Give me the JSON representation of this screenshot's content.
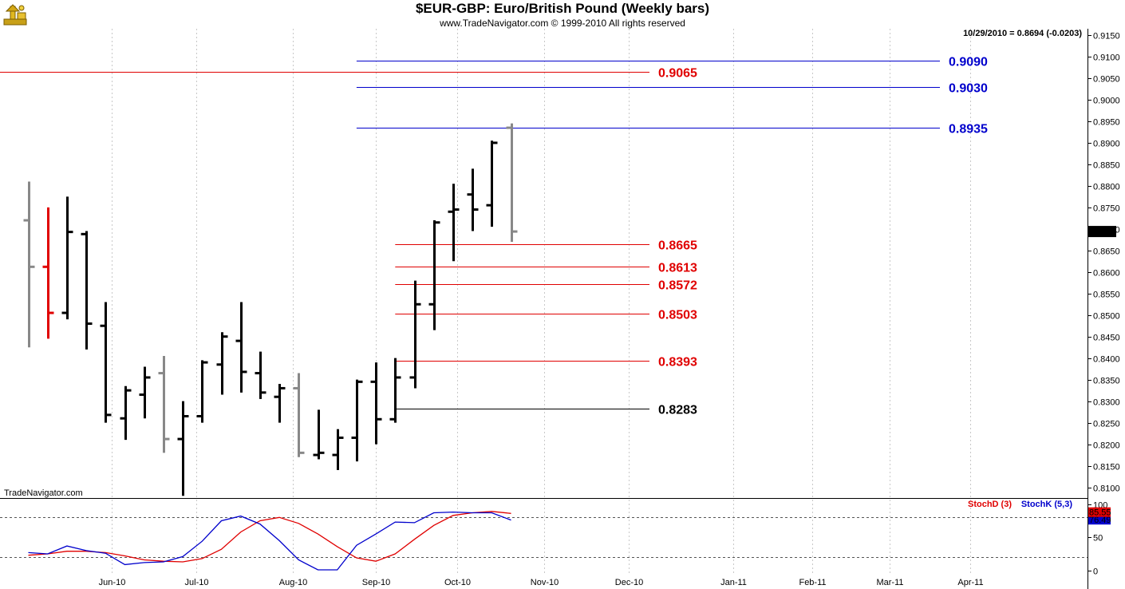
{
  "header": {
    "title": "$EUR-GBP:  Euro/British Pound  (Weekly bars)",
    "subtitle": "www.TradeNavigator.com © 1999-2010 All rights reserved",
    "info": "10/29/2010 = 0.8694 (-0.0203)",
    "watermark": "TradeNavigator.com"
  },
  "colors": {
    "red": "#e00000",
    "blue": "#0000cc",
    "black": "#000000",
    "gray": "#888888"
  },
  "chart_data": [
    {
      "type": "ohlc",
      "ylim": [
        0.8075,
        0.9165
      ],
      "yticks": [
        "0.9150",
        "0.9100",
        "0.9050",
        "0.9000",
        "0.8950",
        "0.8900",
        "0.8850",
        "0.8800",
        "0.8750",
        "0.8700",
        "0.8650",
        "0.8600",
        "0.8550",
        "0.8500",
        "0.8450",
        "0.8400",
        "0.8350",
        "0.8300",
        "0.8250",
        "0.8200",
        "0.8150",
        "0.8100"
      ],
      "xticks": [
        {
          "label": "Jun-10",
          "bar": 4.3
        },
        {
          "label": "Jul-10",
          "bar": 8.7
        },
        {
          "label": "Aug-10",
          "bar": 13.7
        },
        {
          "label": "Sep-10",
          "bar": 18.0
        },
        {
          "label": "Oct-10",
          "bar": 22.2
        },
        {
          "label": "Nov-10",
          "bar": 26.7
        },
        {
          "label": "Dec-10",
          "bar": 31.1
        },
        {
          "label": "Jan-11",
          "bar": 36.5
        },
        {
          "label": "Feb-11",
          "bar": 40.6
        },
        {
          "label": "Mar-11",
          "bar": 44.6
        },
        {
          "label": "Apr-11",
          "bar": 48.8
        }
      ],
      "last_price": "0.8694",
      "bars": [
        {
          "o": 0.872,
          "h": 0.881,
          "l": 0.8425,
          "c": 0.8612,
          "color": "gray"
        },
        {
          "o": 0.8612,
          "h": 0.875,
          "l": 0.8445,
          "c": 0.8505,
          "color": "red"
        },
        {
          "o": 0.8505,
          "h": 0.8775,
          "l": 0.849,
          "c": 0.8693,
          "color": "black"
        },
        {
          "o": 0.8688,
          "h": 0.8695,
          "l": 0.842,
          "c": 0.848,
          "color": "black"
        },
        {
          "o": 0.8475,
          "h": 0.853,
          "l": 0.825,
          "c": 0.8268,
          "color": "black"
        },
        {
          "o": 0.826,
          "h": 0.8335,
          "l": 0.821,
          "c": 0.8325,
          "color": "black"
        },
        {
          "o": 0.8315,
          "h": 0.838,
          "l": 0.826,
          "c": 0.8355,
          "color": "black"
        },
        {
          "o": 0.8365,
          "h": 0.8405,
          "l": 0.818,
          "c": 0.8212,
          "color": "gray"
        },
        {
          "o": 0.8212,
          "h": 0.83,
          "l": 0.808,
          "c": 0.8265,
          "color": "black"
        },
        {
          "o": 0.8265,
          "h": 0.8395,
          "l": 0.825,
          "c": 0.839,
          "color": "black"
        },
        {
          "o": 0.8385,
          "h": 0.846,
          "l": 0.8315,
          "c": 0.845,
          "color": "black"
        },
        {
          "o": 0.844,
          "h": 0.853,
          "l": 0.832,
          "c": 0.8368,
          "color": "black"
        },
        {
          "o": 0.8365,
          "h": 0.8415,
          "l": 0.8305,
          "c": 0.832,
          "color": "black"
        },
        {
          "o": 0.831,
          "h": 0.834,
          "l": 0.825,
          "c": 0.833,
          "color": "black"
        },
        {
          "o": 0.833,
          "h": 0.8365,
          "l": 0.817,
          "c": 0.818,
          "color": "gray"
        },
        {
          "o": 0.8175,
          "h": 0.828,
          "l": 0.8165,
          "c": 0.818,
          "color": "black"
        },
        {
          "o": 0.8175,
          "h": 0.8235,
          "l": 0.814,
          "c": 0.8215,
          "color": "black"
        },
        {
          "o": 0.8215,
          "h": 0.835,
          "l": 0.816,
          "c": 0.8345,
          "color": "black"
        },
        {
          "o": 0.8345,
          "h": 0.839,
          "l": 0.82,
          "c": 0.8258,
          "color": "black"
        },
        {
          "o": 0.8258,
          "h": 0.84,
          "l": 0.825,
          "c": 0.8355,
          "color": "black"
        },
        {
          "o": 0.8355,
          "h": 0.858,
          "l": 0.833,
          "c": 0.8525,
          "color": "black"
        },
        {
          "o": 0.8525,
          "h": 0.872,
          "l": 0.8465,
          "c": 0.8715,
          "color": "black"
        },
        {
          "o": 0.874,
          "h": 0.8805,
          "l": 0.8625,
          "c": 0.8745,
          "color": "black"
        },
        {
          "o": 0.878,
          "h": 0.884,
          "l": 0.8695,
          "c": 0.8745,
          "color": "black"
        },
        {
          "o": 0.8755,
          "h": 0.8905,
          "l": 0.8705,
          "c": 0.89,
          "color": "black"
        },
        {
          "o": 0.8935,
          "h": 0.8945,
          "l": 0.867,
          "c": 0.8694,
          "color": "gray"
        }
      ],
      "levels": [
        {
          "value": 0.909,
          "label": "0.9090",
          "color": "blue",
          "from_bar": 17
        },
        {
          "value": 0.9065,
          "label": "0.9065",
          "color": "red",
          "from_bar": -2
        },
        {
          "value": 0.903,
          "label": "0.9030",
          "color": "blue",
          "from_bar": 17
        },
        {
          "value": 0.8935,
          "label": "0.8935",
          "color": "blue",
          "from_bar": 17
        },
        {
          "value": 0.8665,
          "label": "0.8665",
          "color": "red",
          "from_bar": 19
        },
        {
          "value": 0.8613,
          "label": "0.8613",
          "color": "red",
          "from_bar": 19
        },
        {
          "value": 0.8572,
          "label": "0.8572",
          "color": "red",
          "from_bar": 19
        },
        {
          "value": 0.8503,
          "label": "0.8503",
          "color": "red",
          "from_bar": 19
        },
        {
          "value": 0.8393,
          "label": "0.8393",
          "color": "red",
          "from_bar": 19
        },
        {
          "value": 0.8283,
          "label": "0.8283",
          "color": "black",
          "from_bar": 19
        }
      ]
    },
    {
      "type": "line",
      "ylim": [
        -5,
        108
      ],
      "yticks": [
        "100",
        "50",
        "0"
      ],
      "reference_lines": [
        20,
        80
      ],
      "series": [
        {
          "name": "StochD (3)",
          "color": "red",
          "values": [
            23,
            25,
            29,
            29,
            27,
            22,
            16,
            14,
            13,
            18,
            32,
            58,
            75,
            80,
            71,
            55,
            36,
            19,
            14,
            25,
            47,
            68,
            83,
            87,
            89,
            86
          ]
        },
        {
          "name": "StochK (5,3)",
          "color": "blue",
          "values": [
            27,
            25,
            37,
            30,
            26,
            9,
            12,
            13,
            21,
            44,
            75,
            82,
            70,
            45,
            16,
            1,
            1,
            38,
            55,
            73,
            72,
            87,
            88,
            87,
            87,
            76
          ]
        }
      ],
      "last_values": [
        "85.55",
        "76.49"
      ]
    }
  ]
}
